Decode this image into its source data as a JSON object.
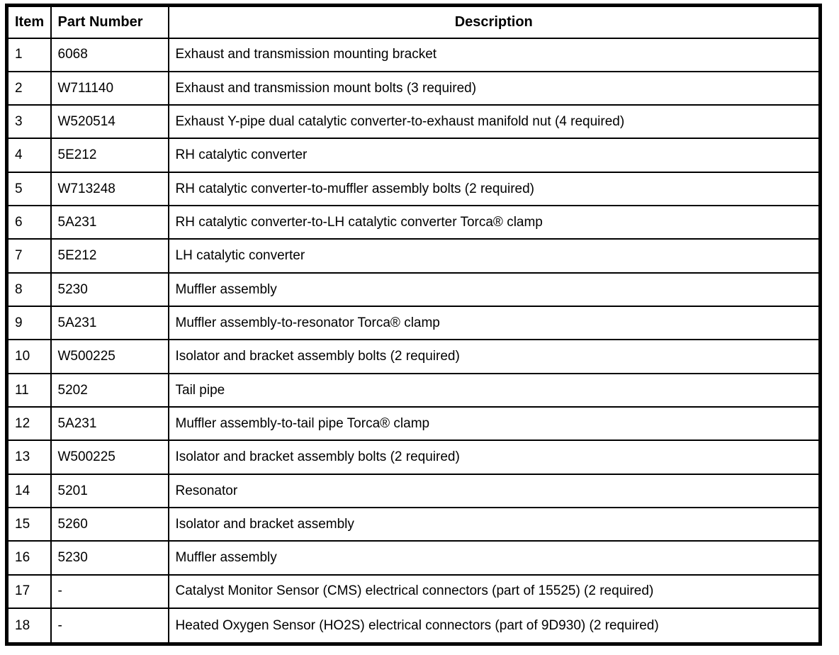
{
  "table": {
    "columns": [
      {
        "key": "item",
        "label": "Item"
      },
      {
        "key": "part",
        "label": "Part Number"
      },
      {
        "key": "desc",
        "label": "Description"
      }
    ],
    "rows": [
      {
        "item": "1",
        "part": "6068",
        "desc": "Exhaust and transmission mounting bracket"
      },
      {
        "item": "2",
        "part": "W711140",
        "desc": "Exhaust and transmission mount bolts (3 required)"
      },
      {
        "item": "3",
        "part": "W520514",
        "desc": "Exhaust Y-pipe dual catalytic converter-to-exhaust manifold nut (4 required)"
      },
      {
        "item": "4",
        "part": "5E212",
        "desc": "RH catalytic converter"
      },
      {
        "item": "5",
        "part": "W713248",
        "desc": "RH catalytic converter-to-muffler assembly bolts (2 required)"
      },
      {
        "item": "6",
        "part": "5A231",
        "desc": "RH catalytic converter-to-LH catalytic converter Torca® clamp"
      },
      {
        "item": "7",
        "part": "5E212",
        "desc": "LH catalytic converter"
      },
      {
        "item": "8",
        "part": "5230",
        "desc": "Muffler assembly"
      },
      {
        "item": "9",
        "part": "5A231",
        "desc": "Muffler assembly-to-resonator Torca® clamp"
      },
      {
        "item": "10",
        "part": "W500225",
        "desc": "Isolator and bracket assembly bolts (2 required)"
      },
      {
        "item": "11",
        "part": "5202",
        "desc": "Tail pipe"
      },
      {
        "item": "12",
        "part": "5A231",
        "desc": "Muffler assembly-to-tail pipe Torca® clamp"
      },
      {
        "item": "13",
        "part": "W500225",
        "desc": "Isolator and bracket assembly bolts (2 required)"
      },
      {
        "item": "14",
        "part": "5201",
        "desc": "Resonator"
      },
      {
        "item": "15",
        "part": "5260",
        "desc": "Isolator and bracket assembly"
      },
      {
        "item": "16",
        "part": "5230",
        "desc": "Muffler assembly"
      },
      {
        "item": "17",
        "part": "-",
        "desc": "Catalyst Monitor Sensor (CMS) electrical connectors (part of 15525) (2 required)"
      },
      {
        "item": "18",
        "part": "-",
        "desc": "Heated Oxygen Sensor (HO2S) electrical connectors (part of 9D930) (2 required)"
      }
    ],
    "colors": {
      "border": "#000000",
      "background": "#ffffff",
      "text": "#000000"
    }
  }
}
